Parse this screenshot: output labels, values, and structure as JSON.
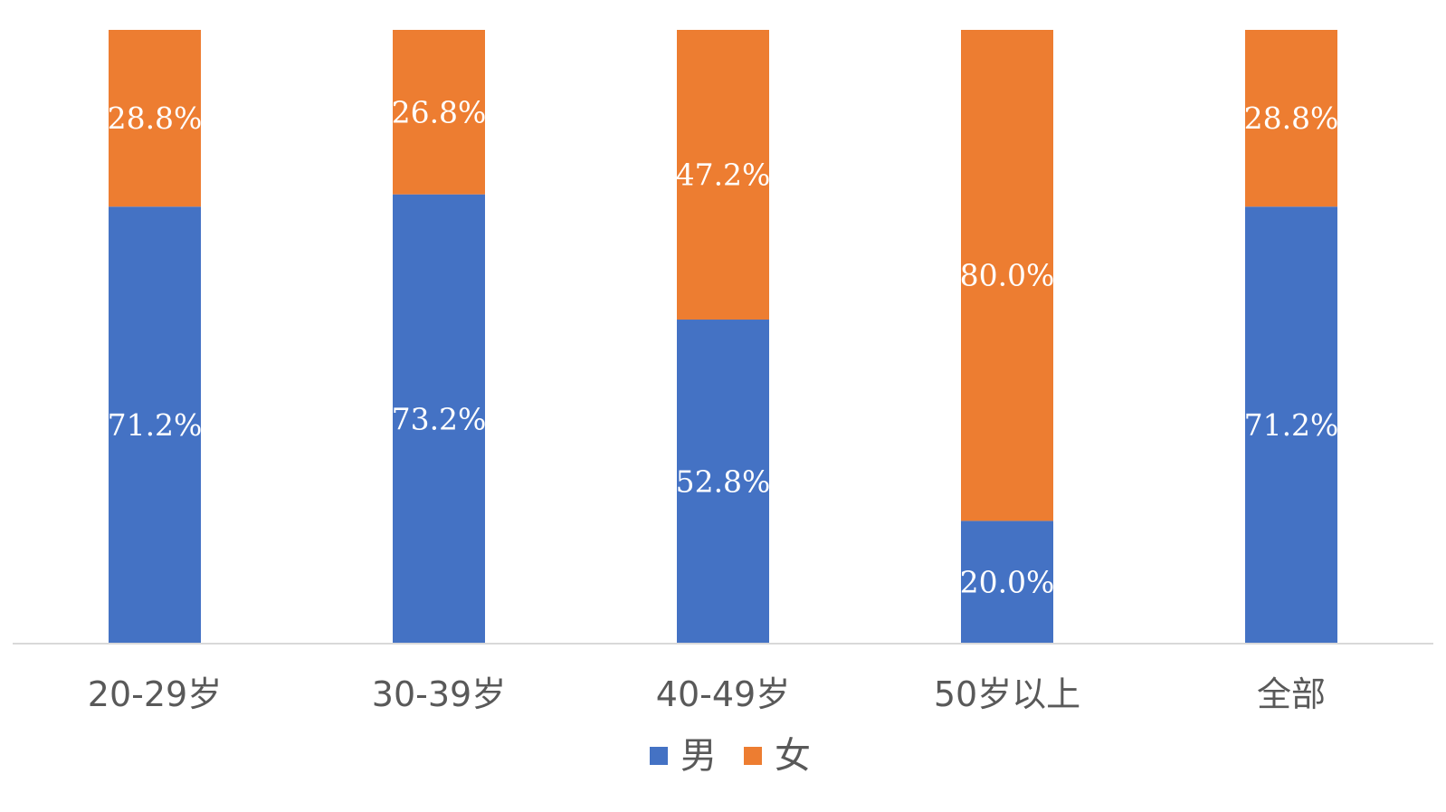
{
  "chart_data": {
    "type": "bar",
    "stacked": true,
    "percent_stacked": true,
    "title": "",
    "xlabel": "",
    "ylabel": "",
    "ylim": [
      0,
      100
    ],
    "grid": false,
    "legend_position": "bottom",
    "categories": [
      "20-29岁",
      "30-39岁",
      "40-49岁",
      "50岁以上",
      "全部"
    ],
    "series": [
      {
        "name": "男",
        "color": "#4472C4",
        "values": [
          71.2,
          73.2,
          52.8,
          20.0,
          71.2
        ],
        "labels": [
          "71.2%",
          "73.2%",
          "52.8%",
          "20.0%",
          "71.2%"
        ]
      },
      {
        "name": "女",
        "color": "#ED7D31",
        "values": [
          28.8,
          26.8,
          47.2,
          80.0,
          28.8
        ],
        "labels": [
          "28.8%",
          "26.8%",
          "47.2%",
          "80.0%",
          "28.8%"
        ]
      }
    ]
  }
}
